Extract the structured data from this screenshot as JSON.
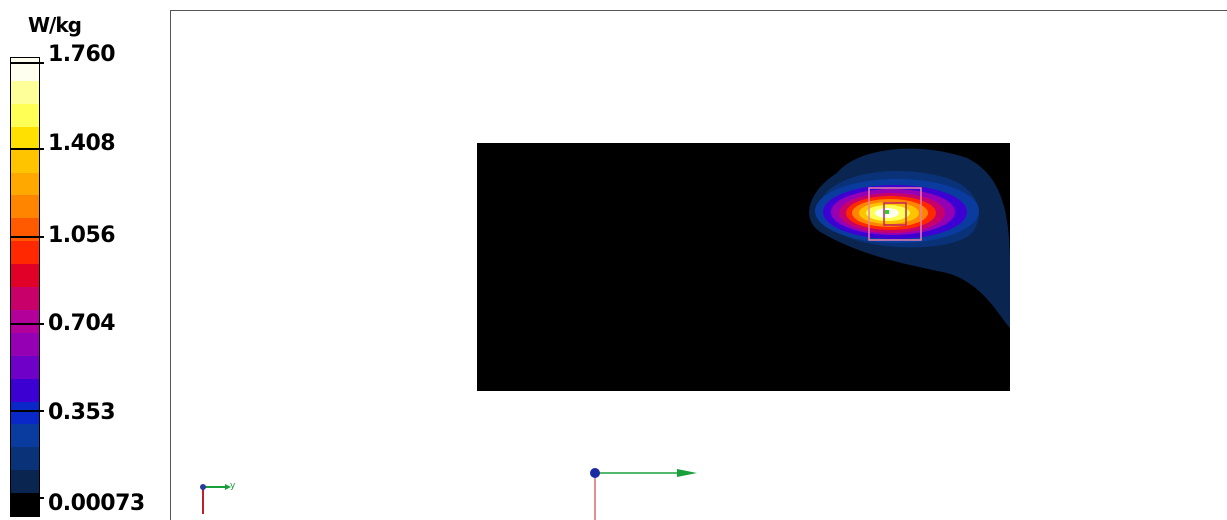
{
  "colorbar": {
    "unit": "W/kg",
    "tick_labels": [
      "1.760",
      "1.408",
      "1.056",
      "0.704",
      "0.353",
      "0.00073"
    ],
    "max": 1.76,
    "min": 0.00073,
    "colors": [
      "#fffff0",
      "#ffff99",
      "#ffff55",
      "#ffe000",
      "#ffc400",
      "#ffa800",
      "#ff8400",
      "#ff5a00",
      "#ff2800",
      "#e00028",
      "#c8006a",
      "#b4009a",
      "#9600b4",
      "#6e00c8",
      "#3c00d2",
      "#0a28c8",
      "#0a3ca0",
      "#0a3278",
      "#0a2650",
      "#000000"
    ]
  },
  "chart_data": {
    "type": "heatmap",
    "title": "",
    "colorbar_label": "W/kg",
    "value_range": [
      0.00073,
      1.76
    ],
    "colorbar_ticks": [
      1.76,
      1.408,
      1.056,
      0.704,
      0.353,
      0.00073
    ],
    "background_color": "#000000",
    "hotspot_peak": 1.76
  },
  "axes": {
    "small_y_label": "y"
  }
}
